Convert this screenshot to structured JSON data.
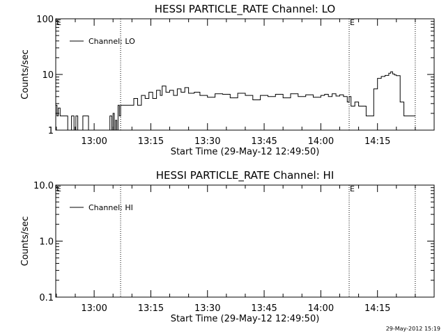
{
  "chart_data": [
    {
      "type": "line",
      "title": "HESSI PARTICLE_RATE Channel: LO",
      "xlabel": "Start Time (29-May-12 12:49:50)",
      "ylabel": "Counts/sec",
      "y_scale": "log",
      "ylim": [
        1,
        100
      ],
      "yticks": [
        "1",
        "10",
        "100"
      ],
      "xlim": [
        "12:49:50",
        "14:30:00"
      ],
      "xticks": [
        "13:00",
        "13:15",
        "13:30",
        "13:45",
        "14:00",
        "14:15"
      ],
      "legend": {
        "placement": "top-left",
        "entries": [
          "Channel: LO"
        ]
      },
      "markers": [
        {
          "time": "13:07:00",
          "label": ""
        },
        {
          "time": "14:07:30",
          "label": "E"
        },
        {
          "time": "14:25:00",
          "label": ""
        }
      ],
      "corner_label": "E",
      "series": [
        {
          "name": "Channel: LO",
          "x": [
            "12:49:50",
            "12:50:10",
            "12:50:30",
            "12:51:00",
            "12:52:00",
            "12:53:00",
            "12:53:30",
            "12:54:00",
            "12:54:40",
            "12:55:10",
            "12:55:40",
            "12:56:30",
            "12:57:00",
            "12:57:30",
            "12:58:30",
            "12:59:30",
            "13:00:30",
            "13:01:30",
            "13:02:30",
            "13:03:30",
            "13:04:10",
            "13:04:40",
            "13:05:00",
            "13:05:20",
            "13:05:40",
            "13:06:00",
            "13:06:20",
            "13:06:40",
            "13:07:00",
            "13:07:20",
            "13:08:30",
            "13:09:30",
            "13:10:30",
            "13:11:30",
            "13:12:30",
            "13:13:30",
            "13:14:30",
            "13:15:30",
            "13:16:30",
            "13:17:30",
            "13:18:00",
            "13:19:00",
            "13:20:00",
            "13:21:00",
            "13:22:00",
            "13:23:00",
            "13:24:00",
            "13:25:00",
            "13:26:30",
            "13:28:00",
            "13:30:00",
            "13:32:00",
            "13:34:00",
            "13:36:00",
            "13:38:00",
            "13:40:00",
            "13:42:00",
            "13:44:00",
            "13:46:00",
            "13:48:00",
            "13:50:00",
            "13:52:00",
            "13:54:00",
            "13:56:00",
            "13:58:00",
            "14:00:00",
            "14:01:00",
            "14:02:00",
            "14:03:00",
            "14:04:00",
            "14:05:00",
            "14:06:00",
            "14:07:00",
            "14:07:30",
            "14:08:00",
            "14:09:00",
            "14:10:00",
            "14:11:00",
            "14:11:30",
            "14:12:00",
            "14:12:30",
            "14:13:00",
            "14:14:00",
            "14:15:00",
            "14:16:00",
            "14:17:00",
            "14:18:00",
            "14:18:30",
            "14:19:00",
            "14:19:30",
            "14:20:00",
            "14:21:00",
            "14:22:00",
            "14:23:00",
            "14:24:00",
            "14:25:00"
          ],
          "y": [
            2.8,
            1.8,
            2.5,
            1.8,
            1.8,
            1,
            1,
            1.8,
            1,
            1.8,
            1,
            1,
            1.8,
            1.8,
            1,
            1,
            1,
            1,
            1,
            1,
            1.8,
            1,
            2,
            1,
            1.5,
            1,
            2.8,
            1.8,
            2.8,
            2.8,
            2.8,
            2.8,
            3.7,
            2.8,
            4.2,
            3.7,
            4.8,
            3.7,
            5.2,
            4.2,
            6.2,
            4.8,
            5.2,
            4.2,
            5.5,
            4.8,
            5.8,
            4.6,
            4.8,
            4.2,
            3.9,
            4.5,
            4.4,
            3.8,
            4.6,
            4.2,
            3.5,
            4.2,
            4.0,
            4.4,
            3.8,
            4.5,
            4.0,
            4.3,
            3.9,
            4.2,
            4.4,
            4.0,
            4.5,
            4.1,
            4.3,
            4.0,
            3.2,
            4.0,
            2.7,
            3.2,
            2.7,
            2.7,
            2.7,
            1.8,
            1.8,
            1.8,
            5.5,
            8.5,
            9.2,
            9.6,
            10.5,
            11.2,
            10.2,
            9.8,
            9.5,
            3.2,
            1.8,
            1.8,
            1.8,
            1.8
          ]
        }
      ]
    },
    {
      "type": "line",
      "title": "HESSI PARTICLE_RATE Channel: HI",
      "xlabel": "Start Time (29-May-12 12:49:50)",
      "ylabel": "Counts/sec",
      "y_scale": "log",
      "ylim": [
        0.1,
        10
      ],
      "yticks": [
        "0.1",
        "1.0",
        "10.0"
      ],
      "xlim": [
        "12:49:50",
        "14:30:00"
      ],
      "xticks": [
        "13:00",
        "13:15",
        "13:30",
        "13:45",
        "14:00",
        "14:15"
      ],
      "legend": {
        "placement": "top-left",
        "entries": [
          "Channel: HI"
        ]
      },
      "markers": [
        {
          "time": "13:07:00",
          "label": ""
        },
        {
          "time": "14:07:30",
          "label": "E"
        },
        {
          "time": "14:25:00",
          "label": ""
        }
      ],
      "corner_label": "E",
      "series": [
        {
          "name": "Channel: HI",
          "x": [],
          "y": []
        }
      ]
    }
  ],
  "footer": {
    "timestamp": "29-May-2012 15:19"
  }
}
